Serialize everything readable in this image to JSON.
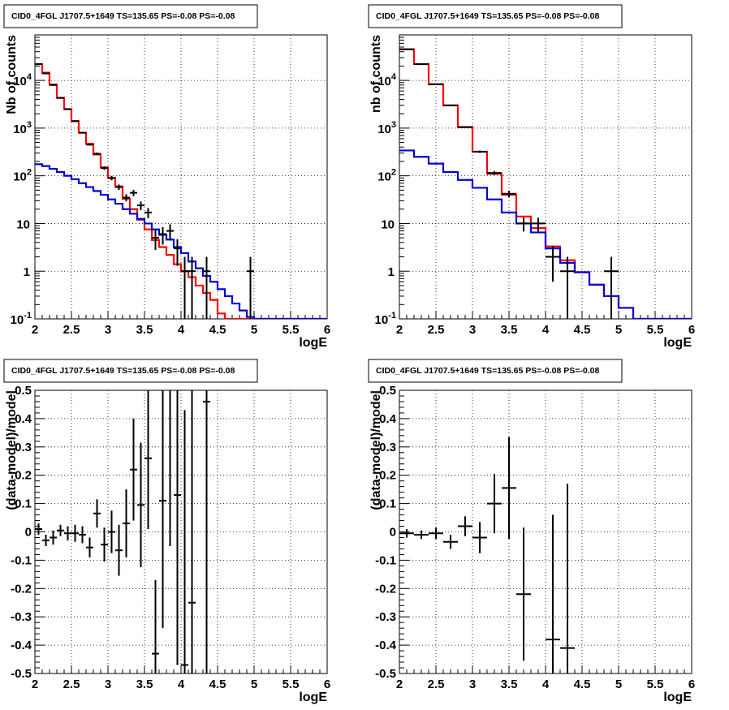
{
  "colors": {
    "data": "#000000",
    "model": "#ff0000",
    "background": "#0000dd",
    "grid": "#000000"
  },
  "chart_data": [
    {
      "type": "line",
      "title": "CID0_4FGL J1707.5+1649 TS=135.65 PS=-0.08 PS=-0.08",
      "xlabel": "logE",
      "ylabel": "Nb of counts",
      "xlim": [
        2,
        6
      ],
      "ylim": [
        0.1,
        90000
      ],
      "yscale": "log",
      "grid": true,
      "xticks": [
        "2",
        "2.5",
        "3",
        "3.5",
        "4",
        "4.5",
        "5",
        "5.5",
        "6"
      ],
      "yticks": [
        "10^-1",
        "1",
        "10",
        "10^2",
        "10^3",
        "10^4"
      ],
      "bin_edges": [
        2.0,
        2.1,
        2.2,
        2.3,
        2.4,
        2.5,
        2.6,
        2.7,
        2.8,
        2.9,
        3.0,
        3.1,
        3.2,
        3.3,
        3.4,
        3.5,
        3.6,
        3.7,
        3.8,
        3.9,
        4.0,
        4.1,
        4.2,
        4.3,
        4.4,
        4.5,
        4.6,
        4.7,
        4.8,
        4.9,
        5.0,
        5.1,
        5.2,
        5.3,
        5.4,
        5.5,
        5.6,
        5.7,
        5.8,
        5.9,
        6.0
      ],
      "series": [
        {
          "name": "model",
          "color": "#ff0000",
          "values": [
            22000,
            14500,
            8200,
            4300,
            2500,
            1400,
            800,
            470,
            280,
            150,
            90,
            60,
            33,
            20,
            12,
            7.5,
            4.5,
            3.2,
            2.2,
            1.4,
            1.0,
            0.75,
            0.5,
            0.35,
            0.25,
            0.13,
            0.1,
            0.1,
            0.1,
            0.1,
            0.1,
            0.1,
            0.1,
            0.1,
            0.1,
            0.1,
            0.1,
            0.1,
            0.1,
            0.1
          ]
        },
        {
          "name": "background",
          "color": "#0000dd",
          "values": [
            175,
            160,
            140,
            120,
            100,
            85,
            70,
            58,
            48,
            40,
            32,
            26,
            20,
            16,
            12.5,
            10,
            7.5,
            5.8,
            4.6,
            3.2,
            2.4,
            1.6,
            1.15,
            0.8,
            0.6,
            0.42,
            0.3,
            0.21,
            0.15,
            0.11,
            0.1,
            0.1,
            0.1,
            0.1,
            0.1,
            0.1,
            0.1,
            0.1,
            0.1,
            0.1
          ]
        },
        {
          "name": "data",
          "color": "#000000",
          "type": "errorbar",
          "points": [
            {
              "x": 2.05,
              "y": 22000,
              "err": 150
            },
            {
              "x": 2.15,
              "y": 14000,
              "err": 120
            },
            {
              "x": 2.25,
              "y": 8000,
              "err": 90
            },
            {
              "x": 2.35,
              "y": 4300,
              "err": 65
            },
            {
              "x": 2.45,
              "y": 2500,
              "err": 50
            },
            {
              "x": 2.55,
              "y": 1400,
              "err": 37
            },
            {
              "x": 2.65,
              "y": 800,
              "err": 28
            },
            {
              "x": 2.75,
              "y": 450,
              "err": 21
            },
            {
              "x": 2.85,
              "y": 290,
              "err": 17
            },
            {
              "x": 2.95,
              "y": 145,
              "err": 12
            },
            {
              "x": 3.05,
              "y": 90,
              "err": 9.5
            },
            {
              "x": 3.15,
              "y": 58,
              "err": 7.6
            },
            {
              "x": 3.25,
              "y": 35,
              "err": 5.9
            },
            {
              "x": 3.35,
              "y": 44,
              "err": 6.6
            },
            {
              "x": 3.45,
              "y": 24,
              "err": 4.9
            },
            {
              "x": 3.55,
              "y": 17,
              "err": 4.1
            },
            {
              "x": 3.65,
              "y": 5,
              "err": 2.2
            },
            {
              "x": 3.75,
              "y": 6,
              "err": 2.4
            },
            {
              "x": 3.85,
              "y": 7,
              "err": 2.6
            },
            {
              "x": 3.95,
              "y": 3,
              "err": 1.7
            },
            {
              "x": 4.05,
              "y": 1,
              "err": 1.0
            },
            {
              "x": 4.15,
              "y": 1,
              "err": 1.0
            },
            {
              "x": 4.35,
              "y": 1,
              "err": 1.0
            },
            {
              "x": 4.95,
              "y": 1,
              "err": 1.0
            }
          ]
        }
      ]
    },
    {
      "type": "line",
      "title": "CID0_4FGL J1707.5+1649 TS=135.65 PS=-0.08 PS=-0.08",
      "xlabel": "logE",
      "ylabel": "nb of counts",
      "xlim": [
        2,
        6
      ],
      "ylim": [
        0.1,
        90000
      ],
      "yscale": "log",
      "grid": true,
      "xticks": [
        "2",
        "2.5",
        "3",
        "3.5",
        "4",
        "4.5",
        "5",
        "5.5",
        "6"
      ],
      "yticks": [
        "10^-1",
        "1",
        "10",
        "10^2",
        "10^3",
        "10^4"
      ],
      "bin_edges": [
        2.0,
        2.2,
        2.4,
        2.6,
        2.8,
        3.0,
        3.2,
        3.4,
        3.6,
        3.8,
        4.0,
        4.2,
        4.4,
        4.6,
        4.8,
        5.0,
        5.2,
        5.4,
        5.6,
        5.8,
        6.0
      ],
      "series": [
        {
          "name": "model",
          "color": "#ff0000",
          "values": [
            45000,
            22000,
            8300,
            3000,
            1050,
            320,
            110,
            40,
            14,
            8,
            3.3,
            1.7,
            0.95,
            0.52,
            0.3,
            0.17,
            0.1,
            0.1,
            0.1,
            0.1
          ]
        },
        {
          "name": "background",
          "color": "#0000dd",
          "values": [
            340,
            250,
            180,
            120,
            82,
            56,
            32,
            17,
            10,
            6.5,
            3.0,
            1.5,
            0.95,
            0.52,
            0.3,
            0.17,
            0.1,
            0.1,
            0.1,
            0.1
          ]
        },
        {
          "name": "data",
          "color": "#000000",
          "type": "errorbar",
          "points": [
            {
              "x": 2.1,
              "y": 45000,
              "err": 212
            },
            {
              "x": 2.3,
              "y": 22000,
              "err": 148
            },
            {
              "x": 2.5,
              "y": 8300,
              "err": 91
            },
            {
              "x": 2.7,
              "y": 3000,
              "err": 55
            },
            {
              "x": 2.9,
              "y": 1050,
              "err": 32
            },
            {
              "x": 3.1,
              "y": 320,
              "err": 18
            },
            {
              "x": 3.3,
              "y": 115,
              "err": 10.7
            },
            {
              "x": 3.5,
              "y": 42,
              "err": 6.5
            },
            {
              "x": 3.7,
              "y": 10,
              "err": 3.2
            },
            {
              "x": 3.9,
              "y": 10,
              "err": 3.2
            },
            {
              "x": 4.1,
              "y": 2,
              "err": 1.4
            },
            {
              "x": 4.3,
              "y": 1,
              "err": 1.0
            },
            {
              "x": 4.9,
              "y": 1,
              "err": 1.0
            }
          ]
        }
      ]
    },
    {
      "type": "scatter",
      "title": "CID0_4FGL J1707.5+1649 TS=135.65 PS=-0.08 PS=-0.08",
      "xlabel": "logE",
      "ylabel": "(data-model)/model",
      "xlim": [
        2,
        6
      ],
      "ylim": [
        -0.5,
        0.5
      ],
      "grid": true,
      "xticks": [
        "2",
        "2.5",
        "3",
        "3.5",
        "4",
        "4.5",
        "5",
        "5.5",
        "6"
      ],
      "yticks": [
        "-0.5",
        "-0.4",
        "-0.3",
        "-0.2",
        "-0.1",
        "0",
        "0.1",
        "0.2",
        "0.3",
        "0.4",
        "0.5"
      ],
      "points": [
        {
          "x": 2.05,
          "y": 0.01,
          "err": 0.02
        },
        {
          "x": 2.15,
          "y": -0.03,
          "err": 0.02
        },
        {
          "x": 2.25,
          "y": -0.02,
          "err": 0.025
        },
        {
          "x": 2.35,
          "y": 0.005,
          "err": 0.02
        },
        {
          "x": 2.45,
          "y": -0.005,
          "err": 0.025
        },
        {
          "x": 2.55,
          "y": -0.005,
          "err": 0.03
        },
        {
          "x": 2.65,
          "y": -0.01,
          "err": 0.03
        },
        {
          "x": 2.75,
          "y": -0.055,
          "err": 0.035
        },
        {
          "x": 2.85,
          "y": 0.065,
          "err": 0.05
        },
        {
          "x": 2.95,
          "y": -0.045,
          "err": 0.06
        },
        {
          "x": 3.05,
          "y": 0.0,
          "err": 0.075
        },
        {
          "x": 3.15,
          "y": -0.065,
          "err": 0.09
        },
        {
          "x": 3.25,
          "y": 0.03,
          "err": 0.12
        },
        {
          "x": 3.35,
          "y": 0.22,
          "err": 0.18
        },
        {
          "x": 3.45,
          "y": 0.095,
          "err": 0.22
        },
        {
          "x": 3.55,
          "y": 0.26,
          "err": 0.25
        },
        {
          "x": 3.65,
          "y": -0.43,
          "err": 0.26
        },
        {
          "x": 3.75,
          "y": 0.11,
          "err": 0.45
        },
        {
          "x": 3.85,
          "y": 0.55,
          "err": 0.6
        },
        {
          "x": 3.95,
          "y": 0.13,
          "err": 0.6
        },
        {
          "x": 4.05,
          "y": -0.47,
          "err": 0.9
        },
        {
          "x": 4.15,
          "y": -0.25,
          "err": 1.0
        },
        {
          "x": 4.35,
          "y": 0.46,
          "err": 1.0
        }
      ]
    },
    {
      "type": "scatter",
      "title": "CID0_4FGL J1707.5+1649 TS=135.65 PS=-0.08 PS=-0.08",
      "xlabel": "logE",
      "ylabel": "(data-model)/model",
      "xlim": [
        2,
        6
      ],
      "ylim": [
        -0.5,
        0.5
      ],
      "grid": true,
      "xticks": [
        "2",
        "2.5",
        "3",
        "3.5",
        "4",
        "4.5",
        "5",
        "5.5",
        "6"
      ],
      "yticks": [
        "-0.5",
        "-0.4",
        "-0.3",
        "-0.2",
        "-0.1",
        "0",
        "0.1",
        "0.2",
        "0.3",
        "0.4",
        "0.5"
      ],
      "points": [
        {
          "x": 2.1,
          "y": -0.005,
          "err": 0.015
        },
        {
          "x": 2.3,
          "y": -0.01,
          "err": 0.015
        },
        {
          "x": 2.5,
          "y": -0.005,
          "err": 0.02
        },
        {
          "x": 2.7,
          "y": -0.035,
          "err": 0.025
        },
        {
          "x": 2.9,
          "y": 0.02,
          "err": 0.035
        },
        {
          "x": 3.1,
          "y": -0.02,
          "err": 0.055
        },
        {
          "x": 3.3,
          "y": 0.1,
          "err": 0.105
        },
        {
          "x": 3.5,
          "y": 0.155,
          "err": 0.18
        },
        {
          "x": 3.7,
          "y": -0.22,
          "err": 0.235
        },
        {
          "x": 4.1,
          "y": -0.38,
          "err": 0.44
        },
        {
          "x": 4.3,
          "y": -0.41,
          "err": 0.58
        }
      ]
    }
  ]
}
